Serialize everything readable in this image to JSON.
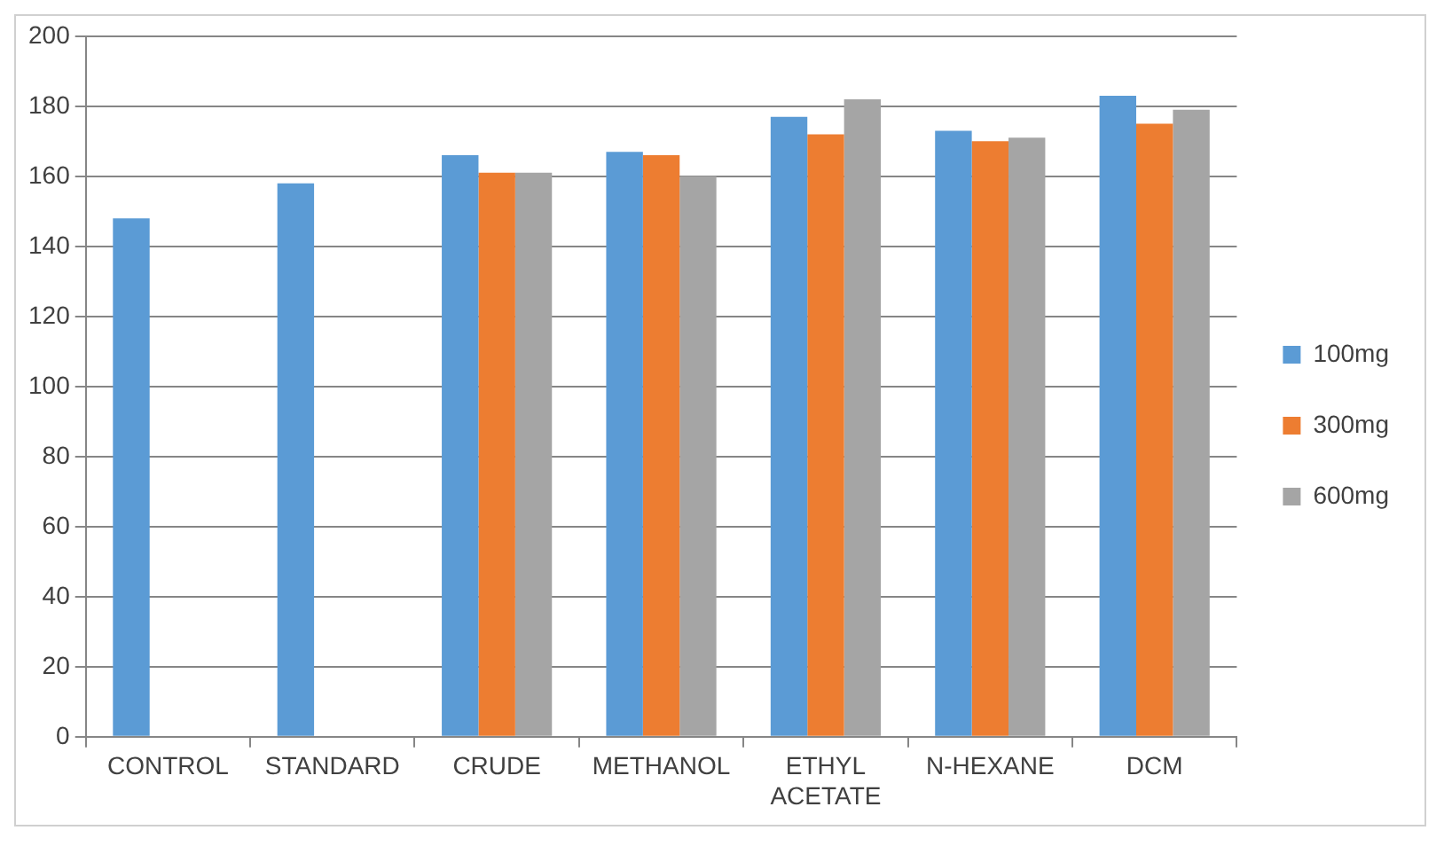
{
  "chart_data": {
    "type": "bar",
    "categories": [
      "CONTROL",
      "STANDARD",
      "CRUDE",
      "METHANOL",
      "ETHYL ACETATE",
      "N-HEXANE",
      "DCM"
    ],
    "series": [
      {
        "name": "100mg",
        "color": "#5b9bd5",
        "values": [
          148,
          158,
          166,
          167,
          177,
          173,
          183
        ]
      },
      {
        "name": "300mg",
        "color": "#ed7d31",
        "values": [
          null,
          null,
          161,
          166,
          172,
          170,
          175
        ]
      },
      {
        "name": "600mg",
        "color": "#a5a5a5",
        "values": [
          null,
          null,
          161,
          160,
          182,
          171,
          179
        ]
      }
    ],
    "ylim": [
      0,
      200
    ],
    "yticks": [
      0,
      20,
      40,
      60,
      80,
      100,
      120,
      140,
      160,
      180,
      200
    ],
    "grid": "y",
    "legend": "right"
  }
}
